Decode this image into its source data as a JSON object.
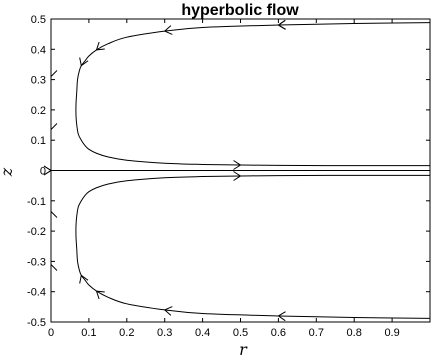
{
  "chart_data": {
    "type": "line",
    "title": "hyperbolic flow",
    "xlabel": "r",
    "ylabel": "z",
    "xlim": [
      0,
      1
    ],
    "ylim": [
      -0.5,
      0.5
    ],
    "x_ticks": [
      0,
      0.1,
      0.2,
      0.3,
      0.4,
      0.5,
      0.6,
      0.7,
      0.8,
      0.9
    ],
    "x_tick_labels": [
      "0",
      "0.1",
      "0.2",
      "0.3",
      "0.4",
      "0.5",
      "0.6",
      "0.7",
      "0.8",
      "0.9"
    ],
    "y_ticks": [
      -0.5,
      -0.4,
      -0.3,
      -0.2,
      -0.1,
      0,
      0.1,
      0.2,
      0.3,
      0.4,
      0.5
    ],
    "y_tick_labels": [
      "-0.5",
      "-0.4",
      "-0.3",
      "-0.2",
      "-0.1",
      "0",
      "0.1",
      "0.2",
      "0.3",
      "0.4",
      "0.5"
    ],
    "grid": false,
    "line_color": "#000000",
    "series": [
      {
        "x": [
          1.0,
          0.8,
          0.6,
          0.4,
          0.3,
          0.2,
          0.15,
          0.12,
          0.1,
          0.09,
          0.08,
          0.075,
          0.07,
          0.068,
          0.066,
          0.066,
          0.068,
          0.072,
          0.08,
          0.09,
          0.1,
          0.12,
          0.15,
          0.2,
          0.3,
          0.4,
          0.5,
          0.6,
          0.8,
          1.0
        ],
        "y": [
          0.488,
          0.485,
          0.48,
          0.472,
          0.46,
          0.44,
          0.418,
          0.398,
          0.378,
          0.362,
          0.346,
          0.33,
          0.3,
          0.26,
          0.22,
          0.18,
          0.15,
          0.12,
          0.1,
          0.082,
          0.07,
          0.057,
          0.045,
          0.034,
          0.024,
          0.02,
          0.018,
          0.017,
          0.016,
          0.016
        ],
        "arrow_x": [
          0.7,
          0.25,
          0.08,
          0.12,
          0.5,
          0.6
        ]
      },
      {
        "x": [
          1.0,
          0.8,
          0.6,
          0.4,
          0.3,
          0.2,
          0.15,
          0.12,
          0.1,
          0.09,
          0.08,
          0.075,
          0.07,
          0.068,
          0.066,
          0.066,
          0.068,
          0.072,
          0.08,
          0.09,
          0.1,
          0.12,
          0.15,
          0.2,
          0.3,
          0.4,
          0.5,
          0.6,
          0.8,
          1.0
        ],
        "y": [
          -0.488,
          -0.485,
          -0.48,
          -0.472,
          -0.46,
          -0.44,
          -0.418,
          -0.398,
          -0.378,
          -0.362,
          -0.346,
          -0.33,
          -0.3,
          -0.26,
          -0.22,
          -0.18,
          -0.15,
          -0.12,
          -0.1,
          -0.082,
          -0.07,
          -0.057,
          -0.045,
          -0.034,
          -0.024,
          -0.02,
          -0.018,
          -0.017,
          -0.016,
          -0.016
        ],
        "arrow_x": [
          0.7,
          0.25,
          0.08,
          0.12,
          0.5
        ]
      },
      {
        "x": [
          0,
          1.0
        ],
        "y": [
          0,
          0
        ],
        "arrow_x": [
          0.12,
          0.33
        ]
      }
    ]
  }
}
